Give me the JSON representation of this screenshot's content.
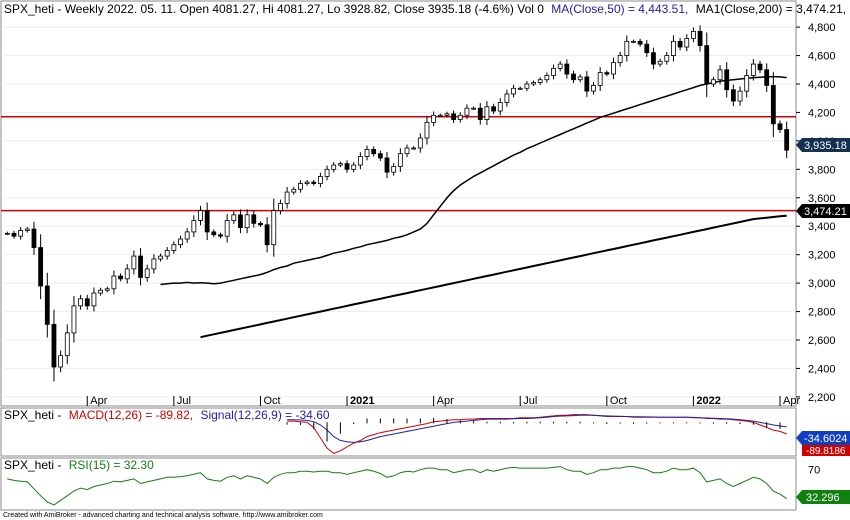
{
  "colors": {
    "up_candle": "#ffffff",
    "down_candle": "#000000",
    "ma50": "#000000",
    "ma200": "#000000",
    "hline": "#d00000",
    "macd": "#d00000",
    "signal": "#2020b0",
    "rsi": "#108010",
    "price_badge": "#123050",
    "ma_badge": "#000000",
    "signal_badge": "#1040c0",
    "macd_badge": "#d00000",
    "rsi_badge": "#108010"
  },
  "header": {
    "main": "SPX_heti - Weekly 2022. 05. 11. Open 4081.27, Hi 4081.27, Lo 3928.82, Close 3935.18 (-4.6%) Vol 0",
    "ma50": "MA(Close,50) = 4,443.51,",
    "ma200": "MA1(Close,200) = 3,474.21,",
    "extra": "V"
  },
  "macd_header": {
    "sym": "SPX_heti -",
    "macd": "MACD(12,26) = -89.82,",
    "signal": "Signal(12,26,9) = -34.60"
  },
  "rsi_header": {
    "sym": "SPX_heti -",
    "rsi": "RSI(15) = 32.30"
  },
  "footer": "Created with AmiBroker - advanced charting and technical analysis software. http://www.amibroker.com",
  "badges": {
    "price": "3,935.18",
    "ma200": "3,474.21",
    "signal": "-34.6024",
    "macd": "-89.8186",
    "rsi": "32.296"
  },
  "chart_data": [
    {
      "type": "candlestick",
      "title": "SPX_heti - Weekly",
      "y_ticks": [
        2200,
        2400,
        2600,
        2800,
        3000,
        3200,
        3400,
        3600,
        3800,
        4000,
        4200,
        4400,
        4600,
        4800
      ],
      "y_tick_labels": [
        "2,200",
        "2,400",
        "2,600",
        "2,800",
        "3,000",
        "3,200",
        "3,400",
        "3,600",
        "3,800",
        "4,000",
        "4,200",
        "4,400",
        "4,600",
        "4,800"
      ],
      "ylim": [
        2150,
        4850
      ],
      "x_ticks": [
        {
          "label": "Apr",
          "index": 12,
          "bold": false
        },
        {
          "label": "Jul",
          "index": 25,
          "bold": false
        },
        {
          "label": "Oct",
          "index": 38,
          "bold": false
        },
        {
          "label": "2021",
          "index": 51,
          "bold": true
        },
        {
          "label": "Apr",
          "index": 64,
          "bold": false
        },
        {
          "label": "Jul",
          "index": 77,
          "bold": false
        },
        {
          "label": "Oct",
          "index": 90,
          "bold": false
        },
        {
          "label": "2022",
          "index": 103,
          "bold": true
        },
        {
          "label": "Apr",
          "index": 116,
          "bold": false
        }
      ],
      "close": [
        3350,
        3330,
        3370,
        3380,
        3250,
        2980,
        2710,
        2410,
        2490,
        2650,
        2840,
        2890,
        2840,
        2930,
        2950,
        2960,
        3050,
        3030,
        3100,
        3190,
        3040,
        3100,
        3170,
        3190,
        3230,
        3270,
        3310,
        3360,
        3440,
        3510,
        3360,
        3340,
        3330,
        3440,
        3480,
        3390,
        3480,
        3420,
        3410,
        3270,
        3510,
        3560,
        3640,
        3660,
        3700,
        3710,
        3700,
        3750,
        3800,
        3830,
        3840,
        3800,
        3830,
        3890,
        3940,
        3910,
        3880,
        3780,
        3820,
        3910,
        3950,
        3950,
        4020,
        4130,
        4180,
        4180,
        4190,
        4150,
        4180,
        4230,
        4230,
        4150,
        4240,
        4210,
        4270,
        4330,
        4370,
        4370,
        4400,
        4410,
        4430,
        4460,
        4510,
        4540,
        4470,
        4430,
        4450,
        4350,
        4390,
        4480,
        4470,
        4550,
        4600,
        4700,
        4700,
        4680,
        4620,
        4540,
        4560,
        4600,
        4700,
        4660,
        4720,
        4770,
        4670,
        4400,
        4430,
        4500,
        4360,
        4280,
        4350,
        4460,
        4540,
        4500,
        4390,
        4120,
        4080,
        3935
      ],
      "ma50": [
        2990,
        2995,
        3000,
        3000,
        3005,
        3000,
        3002,
        3000,
        2995,
        3000,
        3010,
        3020,
        3030,
        3040,
        3050,
        3060,
        3075,
        3095,
        3110,
        3120,
        3140,
        3150,
        3160,
        3170,
        3180,
        3195,
        3210,
        3220,
        3230,
        3245,
        3255,
        3270,
        3280,
        3290,
        3300,
        3315,
        3325,
        3340,
        3360,
        3380,
        3420,
        3480,
        3540,
        3600,
        3650,
        3690,
        3720,
        3750,
        3775,
        3800,
        3825,
        3850,
        3875,
        3900,
        3920,
        3945,
        3965,
        3985,
        4005,
        4025,
        4045,
        4065,
        4085,
        4105,
        4125,
        4145,
        4165,
        4180,
        4195,
        4210,
        4225,
        4240,
        4255,
        4270,
        4285,
        4300,
        4315,
        4330,
        4345,
        4360,
        4375,
        4390,
        4400,
        4410,
        4420,
        4425,
        4430,
        4435,
        4440,
        4445,
        4448,
        4450,
        4452,
        4450,
        4445
      ],
      "ma200": [
        2620,
        2630,
        2640,
        2650,
        2660,
        2670,
        2680,
        2690,
        2700,
        2710,
        2720,
        2730,
        2740,
        2750,
        2760,
        2770,
        2780,
        2790,
        2800,
        2810,
        2820,
        2830,
        2840,
        2850,
        2860,
        2870,
        2880,
        2890,
        2900,
        2910,
        2920,
        2930,
        2940,
        2950,
        2960,
        2970,
        2980,
        2990,
        3000,
        3010,
        3020,
        3030,
        3040,
        3050,
        3060,
        3070,
        3080,
        3090,
        3100,
        3110,
        3120,
        3130,
        3140,
        3150,
        3160,
        3170,
        3180,
        3190,
        3200,
        3210,
        3220,
        3230,
        3240,
        3250,
        3260,
        3270,
        3280,
        3290,
        3300,
        3310,
        3320,
        3330,
        3340,
        3350,
        3360,
        3370,
        3380,
        3390,
        3400,
        3410,
        3420,
        3430,
        3440,
        3450,
        3455,
        3460,
        3465,
        3470,
        3474
      ],
      "horizontal_lines": [
        4170,
        3510
      ]
    },
    {
      "type": "line",
      "title": "MACD(12,26)",
      "ylim": [
        -260,
        80
      ],
      "series": [
        {
          "name": "MACD(12,26)",
          "values": [
            10,
            10,
            5,
            0,
            -40,
            -120,
            -200,
            -240,
            -220,
            -190,
            -160,
            -140,
            -110,
            -95,
            -80,
            -70,
            -60,
            -50,
            -40,
            -30,
            -20,
            -10,
            5,
            10,
            15,
            20,
            20,
            25,
            25,
            30,
            30,
            30,
            30,
            30,
            30,
            35,
            35,
            35,
            40,
            45,
            50,
            55,
            55,
            60,
            60,
            60,
            55,
            50,
            45,
            45,
            45,
            45,
            40,
            40,
            40,
            40,
            40,
            40,
            40,
            40,
            40,
            35,
            35,
            30,
            30,
            25,
            25,
            20,
            15,
            10,
            0,
            -20,
            -40,
            -60,
            -70,
            -90
          ]
        },
        {
          "name": "Signal(12,26,9)",
          "values": [
            20,
            20,
            18,
            15,
            5,
            -20,
            -60,
            -110,
            -140,
            -150,
            -155,
            -150,
            -140,
            -125,
            -110,
            -100,
            -90,
            -80,
            -70,
            -60,
            -50,
            -40,
            -30,
            -20,
            -10,
            0,
            5,
            10,
            15,
            20,
            25,
            25,
            25,
            25,
            28,
            30,
            30,
            32,
            35,
            40,
            45,
            48,
            50,
            52,
            55,
            55,
            55,
            52,
            50,
            48,
            47,
            45,
            44,
            43,
            42,
            41,
            40,
            40,
            40,
            40,
            40,
            38,
            36,
            34,
            32,
            30,
            28,
            25,
            20,
            15,
            10,
            0,
            -10,
            -20,
            -28,
            -35
          ]
        }
      ]
    },
    {
      "type": "line",
      "title": "RSI(15)",
      "ylim": [
        20,
        80
      ],
      "y_ticks": [
        30,
        70
      ],
      "series": [
        {
          "name": "RSI(15)",
          "values": [
            58,
            56,
            55,
            54,
            45,
            36,
            28,
            24,
            30,
            36,
            42,
            46,
            44,
            48,
            50,
            52,
            55,
            54,
            56,
            58,
            52,
            54,
            56,
            58,
            60,
            60,
            61,
            62,
            64,
            66,
            58,
            56,
            55,
            60,
            62,
            58,
            62,
            60,
            58,
            52,
            60,
            64,
            66,
            66,
            68,
            68,
            67,
            68,
            68,
            66,
            66,
            64,
            66,
            68,
            70,
            68,
            65,
            60,
            62,
            66,
            68,
            67,
            70,
            72,
            72,
            70,
            70,
            66,
            68,
            70,
            70,
            66,
            70,
            68,
            70,
            72,
            73,
            72,
            72,
            72,
            72,
            72,
            73,
            74,
            70,
            68,
            68,
            64,
            66,
            70,
            70,
            72,
            72,
            74,
            74,
            72,
            70,
            66,
            66,
            68,
            72,
            70,
            70,
            72,
            66,
            54,
            56,
            58,
            52,
            48,
            52,
            56,
            60,
            58,
            52,
            42,
            38,
            32.3
          ]
        }
      ]
    }
  ]
}
